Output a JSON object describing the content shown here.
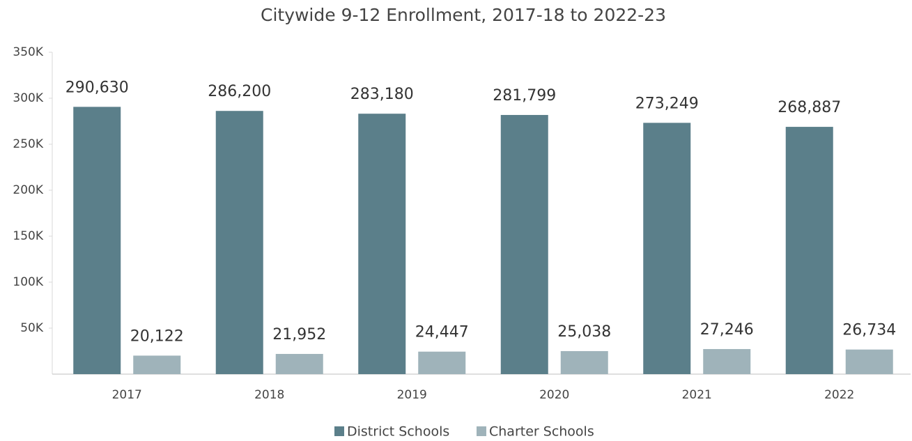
{
  "chart_data": {
    "type": "bar",
    "title": "Citywide 9-12 Enrollment, 2017-18 to 2022-23",
    "categories": [
      "2017",
      "2018",
      "2019",
      "2020",
      "2021",
      "2022"
    ],
    "series": [
      {
        "name": "District Schools",
        "color": "#5b7f8a",
        "values": [
          290630,
          286200,
          283180,
          281799,
          273249,
          268887
        ],
        "value_labels": [
          "290,630",
          "286,200",
          "283,180",
          "281,799",
          "273,249",
          "268,887"
        ]
      },
      {
        "name": "Charter Schools",
        "color": "#9fb3ba",
        "values": [
          20122,
          21952,
          24447,
          25038,
          27246,
          26734
        ],
        "value_labels": [
          "20,122",
          "21,952",
          "24,447",
          "25,038",
          "27,246",
          "26,734"
        ]
      }
    ],
    "ylim": [
      0,
      350000
    ],
    "yticks": [
      {
        "value": 50000,
        "label": "50K"
      },
      {
        "value": 100000,
        "label": "100K"
      },
      {
        "value": 150000,
        "label": "150K"
      },
      {
        "value": 200000,
        "label": "200K"
      },
      {
        "value": 250000,
        "label": "250K"
      },
      {
        "value": 300000,
        "label": "300K"
      },
      {
        "value": 350000,
        "label": "350K"
      }
    ],
    "grid": false,
    "legend": "bottom"
  }
}
